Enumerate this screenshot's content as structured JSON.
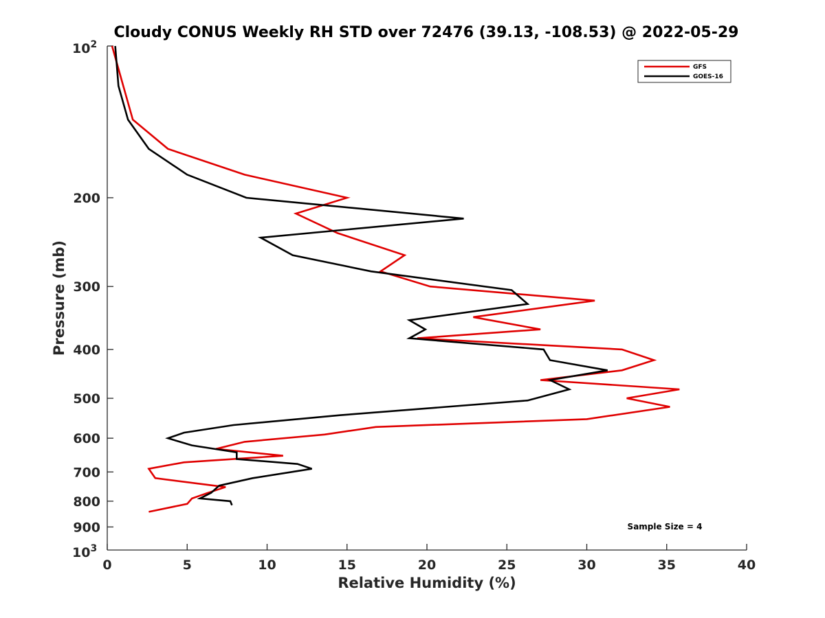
{
  "chart_data": {
    "type": "line",
    "title": "Cloudy CONUS Weekly RH STD over 72476 (39.13, -108.53) @ 2022-05-29",
    "xlabel": "Relative Humidity (%)",
    "ylabel": "Pressure (mb)",
    "xlim": [
      0,
      40
    ],
    "ylim": [
      100,
      1000
    ],
    "yscale": "log",
    "y_reversed": true,
    "x_ticks": [
      0,
      5,
      10,
      15,
      20,
      25,
      30,
      35,
      40
    ],
    "x_tick_labels": [
      "0",
      "5",
      "10",
      "15",
      "20",
      "25",
      "30",
      "35",
      "40"
    ],
    "y_ticks": [
      200,
      300,
      400,
      500,
      600,
      700,
      800,
      900
    ],
    "y_tick_labels": [
      "200",
      "300",
      "400",
      "500",
      "600",
      "700",
      "800",
      "900"
    ],
    "y_edge_labels": {
      "top": {
        "base": "10",
        "exp": "2"
      },
      "bottom": {
        "base": "10",
        "exp": "3"
      }
    },
    "grid": false,
    "legend_position": "top-right",
    "annotation": "Sample Size = 4",
    "series": [
      {
        "name": "GFS",
        "color": "#e00000",
        "points": [
          [
            0.3,
            100
          ],
          [
            1.0,
            120
          ],
          [
            1.6,
            140
          ],
          [
            3.8,
            160
          ],
          [
            8.6,
            180
          ],
          [
            15.0,
            200
          ],
          [
            11.8,
            215
          ],
          [
            14.4,
            235
          ],
          [
            18.6,
            260
          ],
          [
            17.1,
            280
          ],
          [
            20.2,
            300
          ],
          [
            30.5,
            320
          ],
          [
            22.9,
            345
          ],
          [
            27.1,
            365
          ],
          [
            19.4,
            380
          ],
          [
            32.2,
            400
          ],
          [
            34.2,
            420
          ],
          [
            32.2,
            440
          ],
          [
            27.1,
            460
          ],
          [
            35.8,
            480
          ],
          [
            32.5,
            500
          ],
          [
            35.2,
            520
          ],
          [
            30.0,
            550
          ],
          [
            16.8,
            570
          ],
          [
            13.6,
            590
          ],
          [
            8.6,
            610
          ],
          [
            6.8,
            630
          ],
          [
            11.0,
            650
          ],
          [
            4.8,
            670
          ],
          [
            2.6,
            690
          ],
          [
            3.0,
            720
          ],
          [
            7.4,
            750
          ],
          [
            6.3,
            770
          ],
          [
            5.3,
            790
          ],
          [
            5.0,
            810
          ],
          [
            2.6,
            840
          ]
        ]
      },
      {
        "name": "GOES-16",
        "color": "#000000",
        "points": [
          [
            0.5,
            100
          ],
          [
            0.7,
            120
          ],
          [
            1.3,
            140
          ],
          [
            2.6,
            160
          ],
          [
            5.0,
            180
          ],
          [
            8.7,
            200
          ],
          [
            22.3,
            220
          ],
          [
            9.6,
            240
          ],
          [
            11.6,
            260
          ],
          [
            16.5,
            280
          ],
          [
            25.3,
            305
          ],
          [
            26.3,
            325
          ],
          [
            18.9,
            350
          ],
          [
            19.9,
            365
          ],
          [
            18.9,
            380
          ],
          [
            27.3,
            400
          ],
          [
            27.7,
            420
          ],
          [
            31.3,
            440
          ],
          [
            27.7,
            460
          ],
          [
            28.9,
            480
          ],
          [
            26.3,
            505
          ],
          [
            14.6,
            540
          ],
          [
            7.9,
            565
          ],
          [
            4.8,
            585
          ],
          [
            3.8,
            600
          ],
          [
            5.3,
            620
          ],
          [
            8.1,
            640
          ],
          [
            8.1,
            660
          ],
          [
            11.9,
            675
          ],
          [
            12.8,
            690
          ],
          [
            9.1,
            720
          ],
          [
            7.0,
            745
          ],
          [
            6.5,
            770
          ],
          [
            5.8,
            790
          ],
          [
            7.7,
            800
          ],
          [
            7.8,
            815
          ]
        ]
      }
    ]
  }
}
